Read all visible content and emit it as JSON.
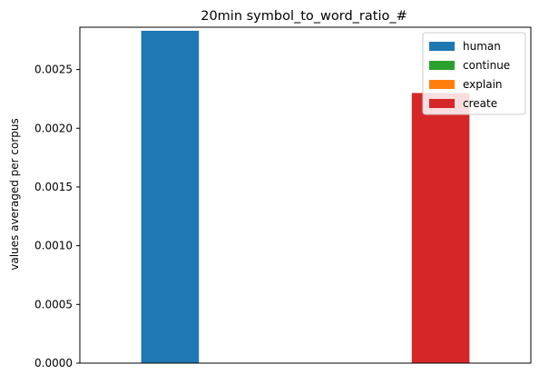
{
  "chart_data": {
    "type": "bar",
    "title": "20min symbol_to_word_ratio_#",
    "xlabel": "",
    "ylabel": "values averaged per corpus",
    "ylim": [
      0,
      0.00286
    ],
    "yticks": [
      0,
      0.0005,
      0.001,
      0.0015,
      0.002,
      0.0025
    ],
    "ytick_labels": [
      "0.0000",
      "0.0005",
      "0.0010",
      "0.0015",
      "0.0020",
      "0.0025"
    ],
    "xticks_visible": false,
    "grid": false,
    "legend_position": "top-right",
    "series": [
      {
        "name": "human",
        "color": "#1f77b4",
        "value": 0.00283
      },
      {
        "name": "continue",
        "color": "#2ca02c",
        "value": 0
      },
      {
        "name": "explain",
        "color": "#ff7f0e",
        "value": 0
      },
      {
        "name": "create",
        "color": "#d62728",
        "value": 0.0023
      }
    ]
  }
}
